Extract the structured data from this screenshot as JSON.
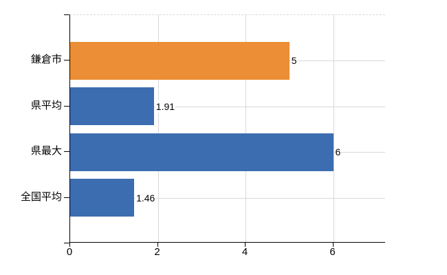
{
  "chart_data": {
    "type": "bar",
    "orientation": "horizontal",
    "title": "",
    "xlabel": "",
    "ylabel": "",
    "categories": [
      "鎌倉市",
      "県平均",
      "県最大",
      "全国平均"
    ],
    "values": [
      5,
      1.91,
      6,
      1.46
    ],
    "value_labels": [
      "5",
      "1.91",
      "6",
      "1.46"
    ],
    "bar_colors": [
      "#eb8e35",
      "#3c6db1",
      "#3c6db1",
      "#3c6db1"
    ],
    "x_ticks": [
      0,
      2,
      4,
      6
    ],
    "x_tick_labels": [
      "0",
      "2",
      "4",
      "6"
    ],
    "xlim": [
      0,
      7.2
    ],
    "grid": true,
    "legend": "none",
    "colors": {
      "highlight_bar": "#eb8e35",
      "default_bar": "#3c6db1",
      "gridline": "#d8d8d8",
      "axis": "#000000",
      "text": "#000000",
      "background": "#ffffff"
    }
  }
}
